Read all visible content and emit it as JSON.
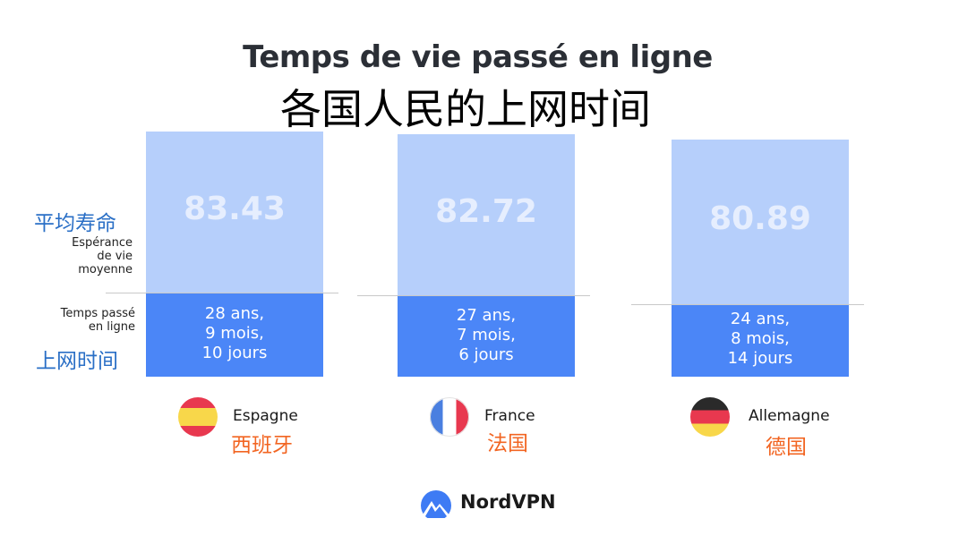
{
  "title_fr": "Temps de vie passé en ligne",
  "title_zh": "各国人民的上网时间",
  "labels": {
    "life_zh": "平均寿命",
    "life_fr": [
      "Espérance",
      "de vie",
      "moyenne"
    ],
    "online_fr": [
      "Temps passé",
      "en ligne"
    ],
    "online_zh": "上网时间"
  },
  "chart_data": {
    "type": "bar",
    "categories": [
      "Espagne",
      "France",
      "Allemagne"
    ],
    "life_expectancy": [
      83.43,
      82.72,
      80.89
    ],
    "time_online_years": [
      28.78,
      27.6,
      24.71
    ],
    "series": [
      {
        "name": "Espérance de vie moyenne",
        "values": [
          83.43,
          82.72,
          80.89
        ]
      },
      {
        "name": "Temps passé en ligne",
        "values": [
          28.78,
          27.6,
          24.71
        ]
      }
    ]
  },
  "countries": [
    {
      "fr": "Espagne",
      "zh": "西班牙",
      "life_label": "83.43",
      "online_lines": [
        "28 ans,",
        "9 mois,",
        "10 jours"
      ],
      "flag": [
        "#e8384f",
        "#f8d74a",
        "#e8384f"
      ]
    },
    {
      "fr": "France",
      "zh": "法国",
      "life_label": "82.72",
      "online_lines": [
        "27 ans,",
        "7 mois,",
        "6 jours"
      ],
      "flag": [
        "#4a7fe0",
        "#ffffff",
        "#e8384f"
      ]
    },
    {
      "fr": "Allemagne",
      "zh": "德国",
      "life_label": "80.89",
      "online_lines": [
        "24 ans,",
        "8 mois,",
        "14 jours"
      ],
      "flag": [
        "#2a2a2a",
        "#e8384f",
        "#f8d74a"
      ]
    }
  ],
  "brand": "NordVPN",
  "icons": [
    "nordvpn-mountain-icon",
    "spain-flag-icon",
    "france-flag-icon",
    "germany-flag-icon"
  ]
}
